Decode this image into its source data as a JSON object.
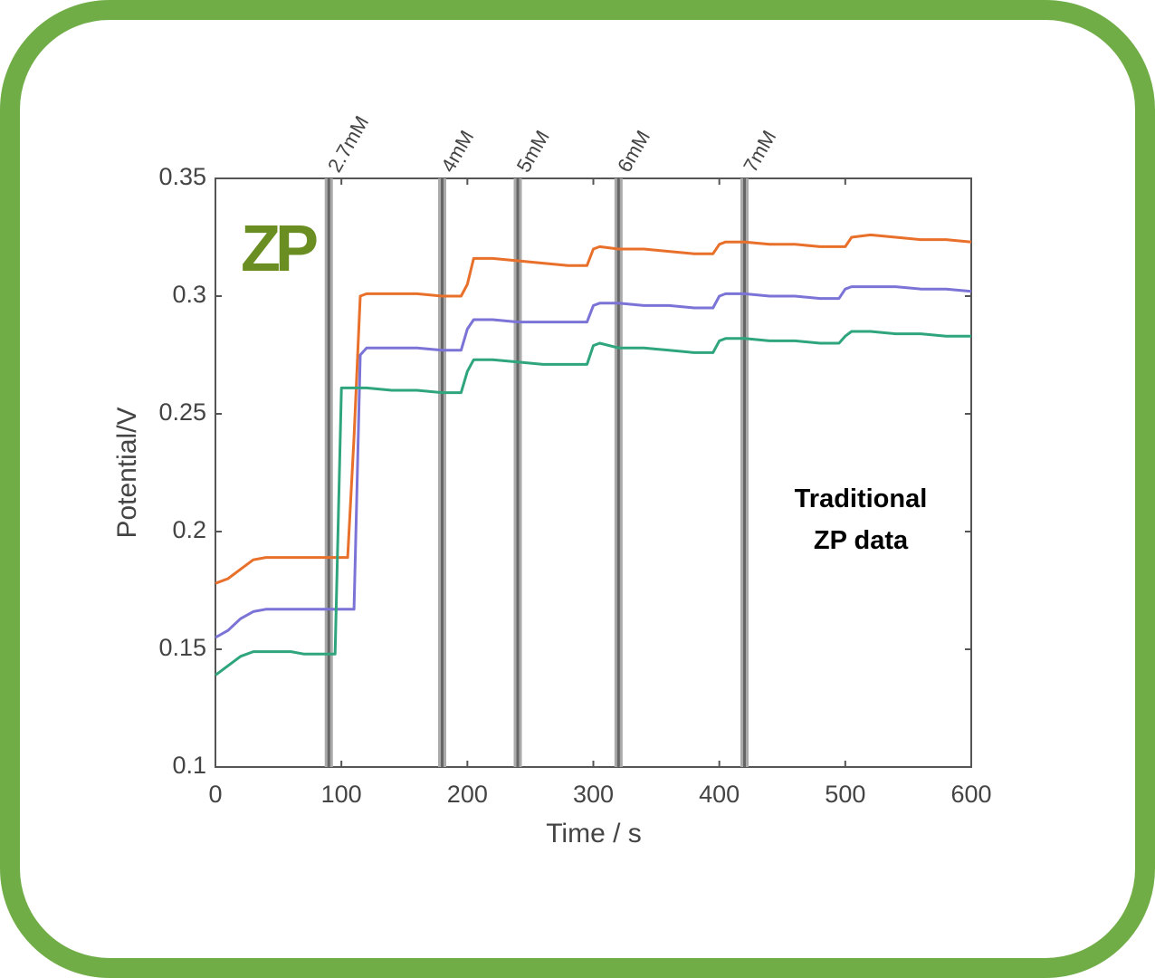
{
  "chart_data": {
    "type": "line",
    "xlabel": "Time / s",
    "ylabel": "Potential/V",
    "annotation": "Traditional ZP data",
    "logo": "ZP",
    "x": [
      0,
      10,
      20,
      30,
      40,
      50,
      60,
      70,
      80,
      90,
      95,
      100,
      105,
      110,
      115,
      120,
      140,
      160,
      180,
      195,
      200,
      205,
      220,
      240,
      260,
      280,
      295,
      300,
      305,
      320,
      340,
      360,
      380,
      395,
      400,
      405,
      420,
      440,
      460,
      480,
      495,
      500,
      505,
      520,
      540,
      560,
      580,
      600
    ],
    "series": [
      {
        "color": "#e8702a",
        "values": [
          0.178,
          0.18,
          0.184,
          0.188,
          0.189,
          0.189,
          0.189,
          0.189,
          0.189,
          0.189,
          0.189,
          0.189,
          0.189,
          0.24,
          0.3,
          0.301,
          0.301,
          0.301,
          0.3,
          0.3,
          0.305,
          0.316,
          0.316,
          0.315,
          0.314,
          0.313,
          0.313,
          0.32,
          0.321,
          0.32,
          0.32,
          0.319,
          0.318,
          0.318,
          0.322,
          0.323,
          0.323,
          0.322,
          0.322,
          0.321,
          0.321,
          0.321,
          0.325,
          0.326,
          0.325,
          0.324,
          0.324,
          0.323
        ]
      },
      {
        "color": "#7b73d6",
        "values": [
          0.155,
          0.158,
          0.163,
          0.166,
          0.167,
          0.167,
          0.167,
          0.167,
          0.167,
          0.167,
          0.167,
          0.167,
          0.167,
          0.167,
          0.275,
          0.278,
          0.278,
          0.278,
          0.277,
          0.277,
          0.286,
          0.29,
          0.29,
          0.289,
          0.289,
          0.289,
          0.289,
          0.296,
          0.297,
          0.297,
          0.296,
          0.296,
          0.295,
          0.295,
          0.3,
          0.301,
          0.301,
          0.3,
          0.3,
          0.299,
          0.299,
          0.303,
          0.304,
          0.304,
          0.304,
          0.303,
          0.303,
          0.302
        ]
      },
      {
        "color": "#2fa57d",
        "values": [
          0.139,
          0.143,
          0.147,
          0.149,
          0.149,
          0.149,
          0.149,
          0.148,
          0.148,
          0.148,
          0.148,
          0.261,
          0.261,
          0.261,
          0.261,
          0.261,
          0.26,
          0.26,
          0.259,
          0.259,
          0.268,
          0.273,
          0.273,
          0.272,
          0.271,
          0.271,
          0.271,
          0.279,
          0.28,
          0.278,
          0.278,
          0.277,
          0.276,
          0.276,
          0.281,
          0.282,
          0.282,
          0.281,
          0.281,
          0.28,
          0.28,
          0.283,
          0.285,
          0.285,
          0.284,
          0.284,
          0.283,
          0.283
        ]
      }
    ],
    "markers": [
      {
        "x": 90,
        "label": "2.7mM"
      },
      {
        "x": 180,
        "label": "4mM"
      },
      {
        "x": 240,
        "label": "5mM"
      },
      {
        "x": 320,
        "label": "6mM"
      },
      {
        "x": 420,
        "label": "7mM"
      }
    ],
    "xlim": [
      0,
      600
    ],
    "xticks": [
      0,
      100,
      200,
      300,
      400,
      500,
      600
    ],
    "ylim": [
      0.1,
      0.35
    ],
    "yticks": [
      0.1,
      0.15,
      0.2,
      0.25,
      0.3,
      0.35
    ]
  }
}
